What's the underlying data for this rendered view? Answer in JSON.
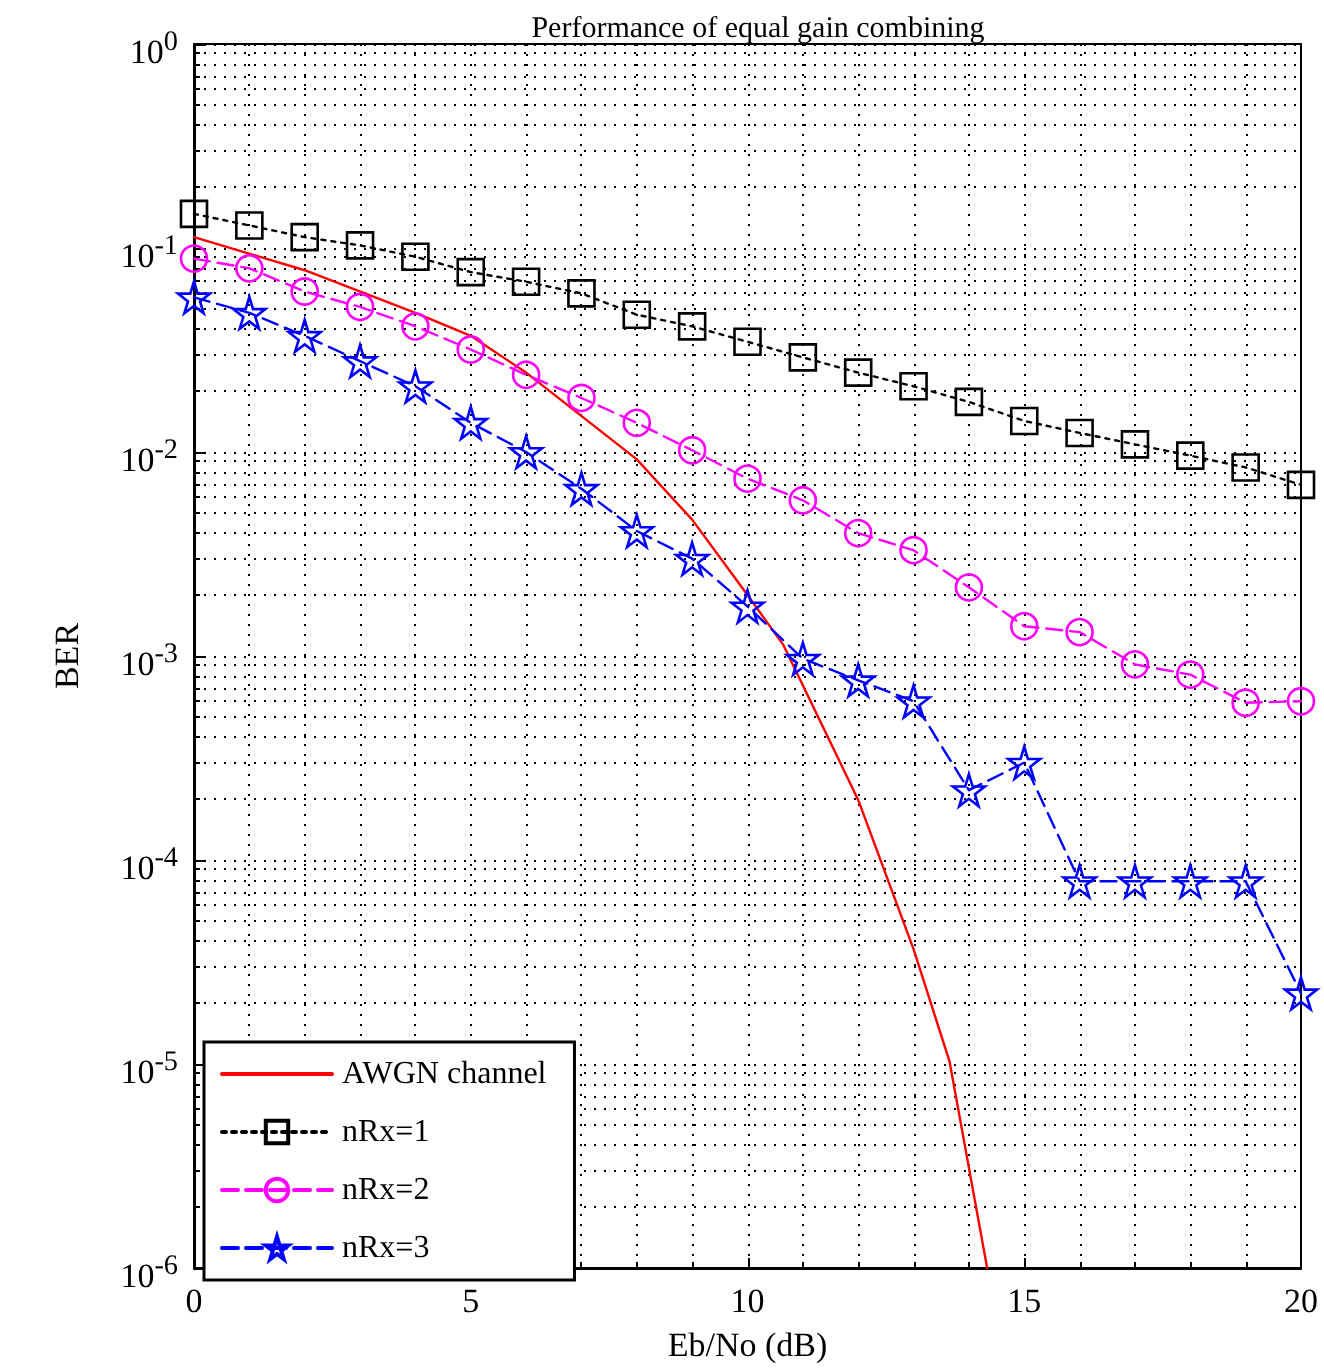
{
  "chart_data": {
    "type": "line",
    "title": "Performance of equal gain combining",
    "xlabel": "Eb/No (dB)",
    "ylabel": "BER",
    "log": "y",
    "grid": true,
    "legend": "bottom left",
    "xlim": [
      0,
      20
    ],
    "xticks": [
      0,
      5,
      10,
      15,
      20
    ],
    "ylim": [
      1e-06,
      1
    ],
    "yticks": [
      {
        "value": 1e-06,
        "label": "10$^{-6}$"
      },
      {
        "value": 1e-05,
        "label": "10$^{-5}$"
      },
      {
        "value": 0.0001,
        "label": "10$^{-4}$"
      },
      {
        "value": 0.001,
        "label": "10$^{-3}$"
      },
      {
        "value": 0.01,
        "label": "10$^{-2}$"
      },
      {
        "value": 0.1,
        "label": "10$^{-1}$"
      },
      {
        "value": 1,
        "label": "10$^{0}$"
      }
    ],
    "x": [
      0,
      1,
      2,
      3,
      4,
      5,
      6,
      7,
      8,
      9,
      10,
      11,
      12,
      13,
      14,
      15,
      16,
      17,
      18,
      19,
      20
    ],
    "series": [
      {
        "name": "AWGN channel",
        "color": "#ff0000",
        "marker": "none",
        "line_style": "solid",
        "x": [
          0,
          2,
          4,
          5,
          6,
          8,
          9,
          10,
          10.65,
          12,
          13,
          13.65,
          14.33
        ],
        "values": [
          0.113,
          0.0778,
          0.0481,
          0.0371,
          0.0245,
          0.0092,
          0.00466,
          0.00199,
          0.00113,
          0.000197,
          3.66e-05,
          1.03e-05,
          1e-06
        ]
      },
      {
        "name": "nRx=1",
        "color": "#000000",
        "marker": "square",
        "line_style": "dotted",
        "values": [
          0.147,
          0.129,
          0.113,
          0.103,
          0.0906,
          0.0762,
          0.0683,
          0.0599,
          0.0471,
          0.0413,
          0.0347,
          0.0291,
          0.0245,
          0.021,
          0.0176,
          0.0142,
          0.0124,
          0.0109,
          0.0096,
          0.0084,
          0.0069
        ]
      },
      {
        "name": "nRx=2",
        "color": "#ff00ff",
        "marker": "circle",
        "line_style": "dashed",
        "values": [
          0.0887,
          0.0795,
          0.0612,
          0.0514,
          0.0413,
          0.0318,
          0.0239,
          0.0184,
          0.0139,
          0.0102,
          0.0074,
          0.0058,
          0.004,
          0.0033,
          0.00217,
          0.0014,
          0.00131,
          0.00091,
          0.00081,
          0.00059,
          0.0006
        ]
      },
      {
        "name": "nRx=3",
        "color": "#0000ff",
        "marker": "star",
        "line_style": "dashed",
        "values": [
          0.0573,
          0.0481,
          0.0371,
          0.0279,
          0.021,
          0.0139,
          0.01,
          0.0066,
          0.0041,
          0.003,
          0.00175,
          0.00097,
          0.00076,
          0.0006,
          0.00022,
          0.0003,
          7.87e-05,
          7.87e-05,
          7.87e-05,
          7.87e-05,
          2.22e-05
        ]
      }
    ]
  }
}
